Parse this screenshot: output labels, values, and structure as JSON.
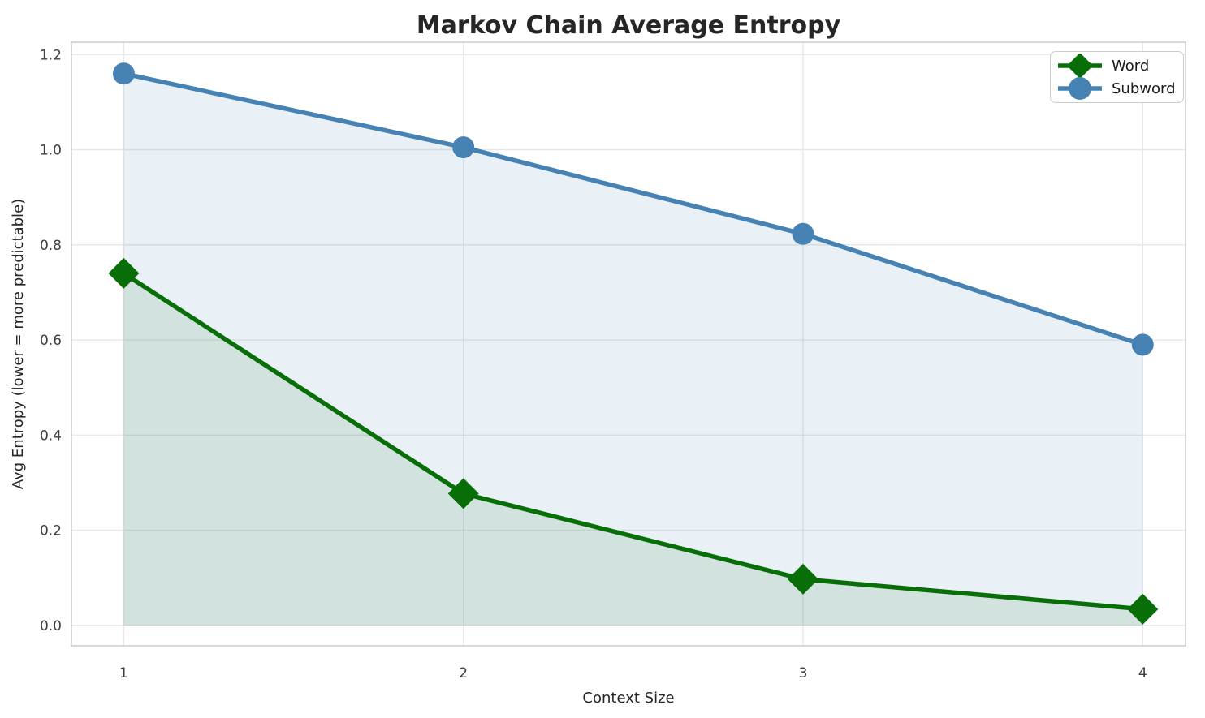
{
  "chart_data": {
    "type": "line",
    "title": "Markov Chain Average Entropy",
    "xlabel": "Context Size",
    "ylabel": "Avg Entropy (lower = more predictable)",
    "x": [
      1,
      2,
      3,
      4
    ],
    "series": [
      {
        "name": "Word",
        "marker": "diamond",
        "color": "#086e08",
        "fill_alpha": 0.1,
        "values": [
          0.74,
          0.277,
          0.097,
          0.034
        ]
      },
      {
        "name": "Subword",
        "marker": "circle",
        "color": "#4682B4",
        "fill_alpha": 0.12,
        "values": [
          1.16,
          1.005,
          0.823,
          0.59
        ]
      }
    ],
    "xticks": [
      "1",
      "2",
      "3",
      "4"
    ],
    "yticks": [
      "0.0",
      "0.2",
      "0.4",
      "0.6",
      "0.8",
      "1.0",
      "1.2"
    ],
    "xlim": [
      0.846,
      4.126
    ],
    "ylim": [
      -0.043,
      1.226
    ],
    "grid": true,
    "area_fill": true,
    "area_baseline": 0,
    "legend_position": "upper right",
    "legend": [
      "Word",
      "Subword"
    ]
  }
}
